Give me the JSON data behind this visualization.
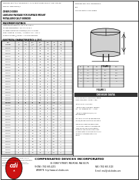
{
  "title_left_l1": "D4D62B.UB-1 thru 1N9983UP-1 AVAILABLE HUBB, BUTTS AND JANTSR",
  "title_left_l2": "FOR MIL-PRF-19521/1",
  "subtitle1": "ZENER DIODES",
  "subtitle2": "LEADLESS PACKAGE FOR SURFACE MOUNT",
  "subtitle3": "METALLURGICALLY BONDED",
  "title_right_l1": "D4D62B.UB-1 thru 1N9983UP-1",
  "title_right_l2": "and",
  "title_right_l3": "CDLL9C7B thru CDLL9885",
  "max_title": "MAXIMUM RATINGS",
  "max_ratings": [
    "Operating Temperature: -65°C to +175°C",
    "Storage Temperature: -65°C to +175°C",
    "DC Power Dissipation: 500mW(g) Typ: 4 x 150Ω",
    "Power Derating: 4.0 mW / °C above T AM = +25°C",
    "Forward Voltage @ 200mA: 1.5 Volts Maximum"
  ],
  "table_title": "ELECTRICAL CHARACTERISTICS @ 25°C",
  "col_headers": [
    "PART\nNUMBER",
    "NOMINAL\nZENER\nVOLTAGE\nVz",
    "TEST\nCURRENT\nIZT",
    "ZENER IMPEDANCE\nOHMS",
    "",
    "MAX DC\nZENER\nCURRENT",
    "MAX REVERSE\nLEAKAGE CURRENT\nIR @ VR",
    ""
  ],
  "sub_headers": [
    "",
    "",
    "",
    "ZZT\n@IZT",
    "ZZK\n@IZK",
    "IZM\n(mA)",
    "VR\n(V)",
    "IR\n(μA)"
  ],
  "rows": [
    [
      "CDLL962B",
      "3.3",
      "20",
      "28",
      "700",
      "250",
      "1.0",
      "100"
    ],
    [
      "CDLL963B",
      "3.6",
      "20",
      "24",
      "700",
      "225",
      "1.0",
      "100"
    ],
    [
      "CDLL964B",
      "3.9",
      "20",
      "23",
      "700",
      "205",
      "1.0",
      "50"
    ],
    [
      "CDLL965B",
      "4.3",
      "20",
      "22",
      "700",
      "190",
      "1.0",
      "10"
    ],
    [
      "CDLL966B",
      "4.7",
      "20",
      "19",
      "500",
      "170",
      "1.0",
      "10"
    ],
    [
      "CDLL967B",
      "5.1",
      "20",
      "17",
      "480",
      "155",
      "2.0",
      "10"
    ],
    [
      "CDLL968B",
      "5.6",
      "20",
      "11",
      "400",
      "145",
      "2.0",
      "10"
    ],
    [
      "CDLL969B",
      "6.2",
      "20",
      "7",
      "200",
      "130",
      "3.0",
      "10"
    ],
    [
      "CDLL970B",
      "6.8",
      "20",
      "5",
      "150",
      "120",
      "4.0",
      "10"
    ],
    [
      "CDLL971B",
      "7.5",
      "20",
      "6",
      "150",
      "110",
      "5.0",
      "10"
    ],
    [
      "CDLL972B",
      "8.2",
      "20",
      "8",
      "150",
      "100",
      "6.0",
      "10"
    ],
    [
      "CDLL973B",
      "8.7",
      "20",
      "8",
      "150",
      "95",
      "6.0",
      "10"
    ],
    [
      "CDLL974B",
      "9.1",
      "20",
      "10",
      "150",
      "90",
      "6.5",
      "10"
    ],
    [
      "CDLL975B",
      "10",
      "20",
      "17",
      "150",
      "85",
      "7.0",
      "10"
    ],
    [
      "CDLL976B",
      "11",
      "20",
      "22",
      "150",
      "75",
      "8.0",
      "10"
    ],
    [
      "CDLL977B",
      "12",
      "20",
      "30",
      "150",
      "70",
      "9.0",
      "10"
    ],
    [
      "CDLL978B",
      "13",
      "20",
      "13",
      "150",
      "60",
      "9.5",
      "10"
    ],
    [
      "CDLL979B",
      "15",
      "20",
      "16",
      "150",
      "55",
      "11.0",
      "10"
    ],
    [
      "CDLL980B",
      "16",
      "20",
      "17",
      "150",
      "50",
      "12.0",
      "10"
    ],
    [
      "CDLL981B",
      "17",
      "20",
      "19",
      "150",
      "48",
      "13.0",
      "10"
    ],
    [
      "CDLL982B",
      "18",
      "20",
      "21",
      "150",
      "45",
      "14.0",
      "10"
    ],
    [
      "CDLL983B",
      "20",
      "20",
      "25",
      "150",
      "40",
      "15.0",
      "10"
    ],
    [
      "CDLL984B",
      "22",
      "20",
      "29",
      "150",
      "37",
      "17.0",
      "10"
    ],
    [
      "CDLL985B",
      "24",
      "20",
      "33",
      "150",
      "34",
      "18.0",
      "10"
    ],
    [
      "CDLL986B",
      "27",
      "20",
      "41",
      "150",
      "30",
      "21.0",
      "10"
    ],
    [
      "CDLL987B",
      "30",
      "20",
      "49",
      "150",
      "27",
      "23.0",
      "10"
    ],
    [
      "CDLL988B",
      "33",
      "20",
      "58",
      "150",
      "25",
      "25.0",
      "10"
    ],
    [
      "CDLL989B",
      "36",
      "20",
      "70",
      "150",
      "22",
      "27.0",
      "10"
    ],
    [
      "CDLL990B",
      "39",
      "20",
      "80",
      "150",
      "20",
      "30.0",
      "10"
    ],
    [
      "CDLL991B",
      "43",
      "20",
      "93",
      "150",
      "19",
      "33.0",
      "10"
    ],
    [
      "CDLL992B",
      "47",
      "20",
      "105",
      "150",
      "17",
      "36.0",
      "10"
    ],
    [
      "CDLL993B",
      "51",
      "20",
      "125",
      "150",
      "16",
      "39.0",
      "10"
    ],
    [
      "CDLL994B",
      "56",
      "20",
      "150",
      "150",
      "14",
      "43.0",
      "10"
    ],
    [
      "CDLL995B",
      "60",
      "20",
      "171",
      "150",
      "13",
      "46.0",
      "10"
    ],
    [
      "CDLL996B",
      "62",
      "20",
      "185",
      "150",
      "13",
      "47.0",
      "10"
    ],
    [
      "CDLL997B",
      "68",
      "20",
      "220",
      "150",
      "12",
      "52.0",
      "10"
    ],
    [
      "CDLL998B",
      "75",
      "20",
      "250",
      "150",
      "11",
      "56.0",
      "10"
    ],
    [
      "CDLL999B",
      "82",
      "20",
      "300",
      "150",
      "10",
      "62.0",
      "10"
    ],
    [
      "CDLL9885",
      "87",
      "20",
      "340",
      "150",
      "9",
      "66.0",
      "10"
    ]
  ],
  "highlight_row": "CDLL982B",
  "footnote1": "NOTE 1  Zener voltage measured at the device junction at thermal",
  "footnote1b": "equilibrium 25°C ± 1°C.",
  "footnote2": "NOTE 2  Zener voltage is measured with the device junction at thermal",
  "footnote2b": "equilibrium at an ambient temperature of 25°C ± 1°C.",
  "footnote3": "NOTE 3  Reverse voltage is defined by measurements at typ 200uA",
  "footnote3b": "into an current equal to 10% of IZT.",
  "figure_label": "FIGURE 1",
  "design_data_title": "DESIGN DATA",
  "design_lines": [
    "CASE: DO-213AA, Hermetically sealed",
    "glass case (MELF, SOD80, LLb4)",
    " ",
    "LEAD FINISH: Sn/Pb lead",
    " ",
    "THERMAL REQUIREMENTS: Package",
    "θJA - CDI measures at L = 4.0mA",
    " ",
    "THERMAL IMPEDANCE (θJL): 19",
    "RTH maximum",
    " ",
    "POLARITY: Diode to be operated with",
    "anode/cathode orientation as positive",
    " ",
    "MOUNTING SURFACE SELECTIONS:",
    "The Thermal Coefficient of Expansion",
    "(CTE) Of The Choice Of Substrates",
    "DIFFER to THE CTE of the Mounting",
    "Surface Factors Should Be Selected To",
    "Minimize A Stresses Within The",
    "Device."
  ],
  "company_name": "COMPENSATED DEVICES INCORPORATED",
  "company_addr": "31 COREY STREET, MELROSE, MA 02176",
  "company_phone": "PHONE: (781) 665-4201",
  "company_fax": "FAX: (781) 665-3100",
  "company_web": "WEBSITE: http://www.cdi-diodes.com",
  "company_email": "E-mail: mail@cdi-diodes.com",
  "bg_color": "#ffffff",
  "text_color": "#000000",
  "border_color": "#000000",
  "gray_light": "#e8e8e8",
  "gray_med": "#cccccc",
  "logo_red": "#cc1111"
}
